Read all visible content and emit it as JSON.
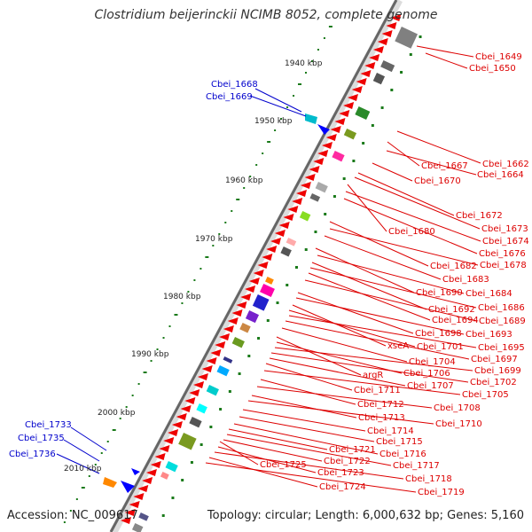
{
  "title": "Clostridium beijerinckii NCIMB 8052, complete genome",
  "accession": "Accession: NC_009617",
  "topology": "Topology: circular; Length: 6,000,632 bp; Genes: 5,160",
  "colors": {
    "forward_label": "#0000cc",
    "reverse_label": "#dd0000",
    "ruler_tick": "#1a7a1a",
    "cds_arrow": "#ee0000"
  },
  "ruler_ticks": [
    "1940 kbp",
    "1950 kbp",
    "1960 kbp",
    "1970 kbp",
    "1980 kbp",
    "1990 kbp",
    "2000 kbp",
    "2010 kbp"
  ],
  "left_labels": [
    "Cbei_1668",
    "Cbei_1669",
    "Cbei_1733",
    "Cbei_1735",
    "Cbei_1736"
  ],
  "right_labels": [
    "Cbei_1649",
    "Cbei_1650",
    "Cbei_1662",
    "Cbei_1667",
    "Cbei_1664",
    "Cbei_1670",
    "Cbei_1672",
    "Cbei_1673",
    "Cbei_1680",
    "Cbei_1674",
    "Cbei_1676",
    "Cbei_1682",
    "Cbei_1678",
    "Cbei_1683",
    "Cbei_1690",
    "Cbei_1684",
    "Cbei_1692",
    "Cbei_1686",
    "Cbei_1694",
    "Cbei_1689",
    "Cbei_1698",
    "Cbei_1693",
    "xseA",
    "Cbei_1701",
    "Cbei_1695",
    "Cbei_1697",
    "Cbei_1704",
    "argR",
    "Cbei_1706",
    "Cbei_1699",
    "Cbei_1702",
    "Cbei_1707",
    "Cbei_1711",
    "Cbei_1705",
    "Cbei_1712",
    "Cbei_1708",
    "Cbei_1713",
    "Cbei_1710",
    "Cbei_1714",
    "Cbei_1715",
    "Cbei_1716",
    "Cbei_1721",
    "Cbei_1717",
    "Cbei_1725",
    "Cbei_1722",
    "Cbei_1723",
    "Cbei_1718",
    "Cbei_1724",
    "Cbei_1719"
  ]
}
